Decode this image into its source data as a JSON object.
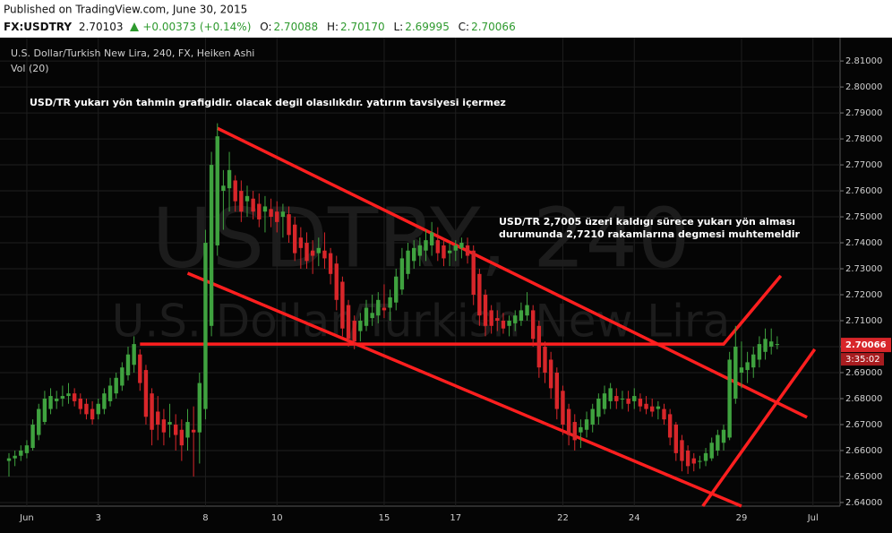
{
  "chart_data": {
    "type": "candlestick",
    "published": "Published on TradingView.com, June 30, 2015",
    "quote": {
      "symbol": "FX:USDTRY",
      "last": "2.70103",
      "change": "+0.00373 (+0.14%)",
      "fields": [
        {
          "label": "O:",
          "value": "2.70088"
        },
        {
          "label": "H:",
          "value": "2.70170"
        },
        {
          "label": "L:",
          "value": "2.69995"
        },
        {
          "label": "C:",
          "value": "2.70066"
        }
      ]
    },
    "title": "U.S. Dollar/Turkish New Lira, 240, FX, Heiken Ashi",
    "subtitle": "Vol (20)",
    "watermark": [
      "USDTRY, 240",
      "U.S. Dollar/Turkish New Lira"
    ],
    "annotations": [
      "USD/TR yukarı yön tahmin grafigidir. olacak degil olasılıkdır. yatırım tavsiyesi içermez",
      "USD/TR 2,7005 üzeri kaldıgı sürece yukarı yön alması",
      "durumunda 2,7210 rakamlarına degmesi muhtemeldir"
    ],
    "up_color": "#3fa23f",
    "down_color": "#d8262a",
    "last_price": 2.70066,
    "countdown": "3:35:02",
    "grid": true,
    "ylim": [
      2.6386,
      2.819
    ],
    "yticks": [
      {
        "value": 2.64,
        "label": "2.64000"
      },
      {
        "value": 2.65,
        "label": "2.65000"
      },
      {
        "value": 2.66,
        "label": "2.66000"
      },
      {
        "value": 2.67,
        "label": "2.67000"
      },
      {
        "value": 2.68,
        "label": "2.68000"
      },
      {
        "value": 2.69,
        "label": "2.69000"
      },
      {
        "value": 2.7,
        "label": "2.70000"
      },
      {
        "value": 2.71,
        "label": "2.71000"
      },
      {
        "value": 2.72,
        "label": "2.72000"
      },
      {
        "value": 2.73,
        "label": "2.73000"
      },
      {
        "value": 2.74,
        "label": "2.74000"
      },
      {
        "value": 2.75,
        "label": "2.75000"
      },
      {
        "value": 2.76,
        "label": "2.76000"
      },
      {
        "value": 2.77,
        "label": "2.77000"
      },
      {
        "value": 2.78,
        "label": "2.78000"
      },
      {
        "value": 2.79,
        "label": "2.79000"
      },
      {
        "value": 2.8,
        "label": "2.80000"
      },
      {
        "value": 2.81,
        "label": "2.81000"
      }
    ],
    "categories": [
      null,
      null,
      null,
      "Jun",
      null,
      null,
      null,
      null,
      null,
      null,
      null,
      null,
      null,
      null,
      null,
      "3",
      null,
      null,
      null,
      null,
      null,
      null,
      null,
      null,
      null,
      null,
      null,
      null,
      null,
      null,
      null,
      null,
      null,
      "8",
      null,
      null,
      null,
      null,
      null,
      null,
      null,
      null,
      null,
      null,
      null,
      "10",
      null,
      null,
      null,
      null,
      null,
      null,
      null,
      null,
      null,
      null,
      null,
      null,
      null,
      null,
      null,
      null,
      null,
      "15",
      null,
      null,
      null,
      null,
      null,
      null,
      null,
      null,
      null,
      null,
      null,
      "17",
      null,
      null,
      null,
      null,
      null,
      null,
      null,
      null,
      null,
      null,
      null,
      null,
      null,
      null,
      null,
      null,
      null,
      "22",
      null,
      null,
      null,
      null,
      null,
      null,
      null,
      null,
      null,
      null,
      null,
      "24",
      null,
      null,
      null,
      null,
      null,
      null,
      null,
      null,
      null,
      null,
      null,
      null,
      null,
      null,
      null,
      null,
      null,
      "29",
      null,
      null,
      null,
      null,
      null,
      null,
      null,
      null,
      null,
      null,
      null,
      "Jul"
    ],
    "candles": [
      [
        2.656,
        2.659,
        2.65,
        2.657
      ],
      [
        2.657,
        2.66,
        2.654,
        2.658
      ],
      [
        2.658,
        2.662,
        2.656,
        2.66
      ],
      [
        2.659,
        2.664,
        2.657,
        2.662
      ],
      [
        2.661,
        2.672,
        2.66,
        2.67
      ],
      [
        2.666,
        2.678,
        2.664,
        2.676
      ],
      [
        2.671,
        2.683,
        2.67,
        2.68
      ],
      [
        2.676,
        2.684,
        2.674,
        2.681
      ],
      [
        2.679,
        2.683,
        2.676,
        2.68
      ],
      [
        2.68,
        2.685,
        2.677,
        2.681
      ],
      [
        2.681,
        2.686,
        2.678,
        2.682
      ],
      [
        2.682,
        2.684,
        2.677,
        2.679
      ],
      [
        2.68,
        2.682,
        2.674,
        2.676
      ],
      [
        2.678,
        2.68,
        2.672,
        2.674
      ],
      [
        2.676,
        2.679,
        2.67,
        2.672
      ],
      [
        2.674,
        2.68,
        2.672,
        2.678
      ],
      [
        2.676,
        2.684,
        2.674,
        2.682
      ],
      [
        2.679,
        2.688,
        2.677,
        2.685
      ],
      [
        2.682,
        2.69,
        2.68,
        2.688
      ],
      [
        2.685,
        2.694,
        2.683,
        2.692
      ],
      [
        2.689,
        2.7,
        2.687,
        2.697
      ],
      [
        2.693,
        2.704,
        2.69,
        2.701
      ],
      [
        2.697,
        2.699,
        2.683,
        2.686
      ],
      [
        2.691,
        2.693,
        2.67,
        2.673
      ],
      [
        2.682,
        2.684,
        2.662,
        2.668
      ],
      [
        2.675,
        2.681,
        2.664,
        2.67
      ],
      [
        2.672,
        2.676,
        2.662,
        2.667
      ],
      [
        2.67,
        2.678,
        2.665,
        2.671
      ],
      [
        2.67,
        2.674,
        2.66,
        2.666
      ],
      [
        2.668,
        2.672,
        2.656,
        2.662
      ],
      [
        2.665,
        2.676,
        2.66,
        2.671
      ],
      [
        2.668,
        2.677,
        2.65,
        2.667
      ],
      [
        2.667,
        2.69,
        2.655,
        2.686
      ],
      [
        2.676,
        2.745,
        2.672,
        2.74
      ],
      [
        2.708,
        2.775,
        2.704,
        2.77
      ],
      [
        2.739,
        2.786,
        2.735,
        2.781
      ],
      [
        2.76,
        2.768,
        2.745,
        2.762
      ],
      [
        2.761,
        2.775,
        2.752,
        2.768
      ],
      [
        2.764,
        2.766,
        2.752,
        2.756
      ],
      [
        2.76,
        2.764,
        2.748,
        2.752
      ],
      [
        2.756,
        2.762,
        2.75,
        2.758
      ],
      [
        2.757,
        2.76,
        2.749,
        2.752
      ],
      [
        2.755,
        2.759,
        2.746,
        2.749
      ],
      [
        2.752,
        2.758,
        2.744,
        2.754
      ],
      [
        2.753,
        2.757,
        2.746,
        2.75
      ],
      [
        2.752,
        2.756,
        2.744,
        2.748
      ],
      [
        2.75,
        2.755,
        2.742,
        2.752
      ],
      [
        2.751,
        2.754,
        2.74,
        2.743
      ],
      [
        2.747,
        2.75,
        2.733,
        2.736
      ],
      [
        2.742,
        2.746,
        2.73,
        2.738
      ],
      [
        2.74,
        2.744,
        2.73,
        2.733
      ],
      [
        2.737,
        2.741,
        2.728,
        2.735
      ],
      [
        2.736,
        2.742,
        2.731,
        2.738
      ],
      [
        2.737,
        2.744,
        2.73,
        2.734
      ],
      [
        2.736,
        2.738,
        2.724,
        2.728
      ],
      [
        2.732,
        2.735,
        2.714,
        2.718
      ],
      [
        2.725,
        2.727,
        2.704,
        2.707
      ],
      [
        2.716,
        2.718,
        2.7,
        2.703
      ],
      [
        2.71,
        2.712,
        2.699,
        2.702
      ],
      [
        2.706,
        2.713,
        2.702,
        2.71
      ],
      [
        2.708,
        2.718,
        2.706,
        2.715
      ],
      [
        2.711,
        2.72,
        2.708,
        2.713
      ],
      [
        2.712,
        2.721,
        2.709,
        2.718
      ],
      [
        2.715,
        2.724,
        2.711,
        2.714
      ],
      [
        2.715,
        2.722,
        2.71,
        2.719
      ],
      [
        2.717,
        2.73,
        2.714,
        2.727
      ],
      [
        2.722,
        2.738,
        2.72,
        2.734
      ],
      [
        2.728,
        2.74,
        2.726,
        2.737
      ],
      [
        2.733,
        2.741,
        2.73,
        2.738
      ],
      [
        2.735,
        2.742,
        2.731,
        2.739
      ],
      [
        2.737,
        2.745,
        2.733,
        2.741
      ],
      [
        2.739,
        2.748,
        2.735,
        2.744
      ],
      [
        2.741,
        2.746,
        2.733,
        2.736
      ],
      [
        2.739,
        2.742,
        2.731,
        2.734
      ],
      [
        2.736,
        2.74,
        2.731,
        2.737
      ],
      [
        2.737,
        2.741,
        2.733,
        2.739
      ],
      [
        2.738,
        2.742,
        2.734,
        2.74
      ],
      [
        2.739,
        2.742,
        2.732,
        2.735
      ],
      [
        2.737,
        2.739,
        2.716,
        2.72
      ],
      [
        2.728,
        2.73,
        2.708,
        2.712
      ],
      [
        2.72,
        2.722,
        2.704,
        2.708
      ],
      [
        2.714,
        2.716,
        2.705,
        2.708
      ],
      [
        2.711,
        2.714,
        2.706,
        2.71
      ],
      [
        2.71,
        2.713,
        2.705,
        2.707
      ],
      [
        2.708,
        2.712,
        2.704,
        2.71
      ],
      [
        2.709,
        2.714,
        2.706,
        2.712
      ],
      [
        2.71,
        2.717,
        2.708,
        2.714
      ],
      [
        2.712,
        2.721,
        2.71,
        2.716
      ],
      [
        2.714,
        2.716,
        2.7,
        2.703
      ],
      [
        2.708,
        2.71,
        2.688,
        2.692
      ],
      [
        2.7,
        2.702,
        2.686,
        2.69
      ],
      [
        2.695,
        2.698,
        2.68,
        2.684
      ],
      [
        2.69,
        2.692,
        2.672,
        2.676
      ],
      [
        2.683,
        2.685,
        2.666,
        2.67
      ],
      [
        2.676,
        2.678,
        2.662,
        2.666
      ],
      [
        2.671,
        2.674,
        2.66,
        2.664
      ],
      [
        2.667,
        2.672,
        2.661,
        2.669
      ],
      [
        2.668,
        2.675,
        2.665,
        2.672
      ],
      [
        2.67,
        2.678,
        2.667,
        2.676
      ],
      [
        2.673,
        2.682,
        2.67,
        2.68
      ],
      [
        2.676,
        2.685,
        2.674,
        2.682
      ],
      [
        2.679,
        2.686,
        2.676,
        2.684
      ],
      [
        2.681,
        2.684,
        2.676,
        2.679
      ],
      [
        2.68,
        2.683,
        2.676,
        2.68
      ],
      [
        2.68,
        2.683,
        2.675,
        2.678
      ],
      [
        2.679,
        2.684,
        2.676,
        2.681
      ],
      [
        2.68,
        2.682,
        2.675,
        2.677
      ],
      [
        2.678,
        2.681,
        2.674,
        2.676
      ],
      [
        2.677,
        2.68,
        2.673,
        2.675
      ],
      [
        2.676,
        2.679,
        2.672,
        2.677
      ],
      [
        2.676,
        2.678,
        2.67,
        2.672
      ],
      [
        2.674,
        2.676,
        2.662,
        2.665
      ],
      [
        2.67,
        2.671,
        2.656,
        2.659
      ],
      [
        2.664,
        2.666,
        2.652,
        2.656
      ],
      [
        2.66,
        2.662,
        2.651,
        2.654
      ],
      [
        2.657,
        2.659,
        2.652,
        2.655
      ],
      [
        2.656,
        2.658,
        2.653,
        2.656
      ],
      [
        2.656,
        2.661,
        2.654,
        2.659
      ],
      [
        2.657,
        2.665,
        2.656,
        2.663
      ],
      [
        2.66,
        2.668,
        2.658,
        2.666
      ],
      [
        2.663,
        2.67,
        2.66,
        2.668
      ],
      [
        2.665,
        2.698,
        2.664,
        2.695
      ],
      [
        2.68,
        2.708,
        2.678,
        2.7
      ],
      [
        2.69,
        2.702,
        2.684,
        2.692
      ],
      [
        2.691,
        2.698,
        2.686,
        2.694
      ],
      [
        2.692,
        2.7,
        2.688,
        2.697
      ],
      [
        2.695,
        2.704,
        2.692,
        2.701
      ],
      [
        2.698,
        2.707,
        2.695,
        2.703
      ],
      [
        2.7,
        2.707,
        2.697,
        2.702
      ],
      [
        2.701,
        2.704,
        2.699,
        2.701
      ],
      null,
      null,
      null,
      null,
      null,
      null
    ],
    "trendlines": [
      {
        "color": "#ff1f1f",
        "points": [
          [
            35,
            2.7841
          ],
          [
            134,
            2.6728
          ]
        ]
      },
      {
        "color": "#ff1f1f",
        "points": [
          [
            30,
            2.7283
          ],
          [
            123,
            2.6386
          ]
        ]
      },
      {
        "color": "#ff1f1f",
        "points": [
          [
            22,
            2.701
          ],
          [
            120,
            2.701
          ],
          [
            129.6,
            2.7273
          ]
        ]
      },
      {
        "color": "#ff1f1f",
        "points": [
          [
            116.5,
            2.6386
          ],
          [
            135.3,
            2.699
          ]
        ]
      }
    ]
  }
}
